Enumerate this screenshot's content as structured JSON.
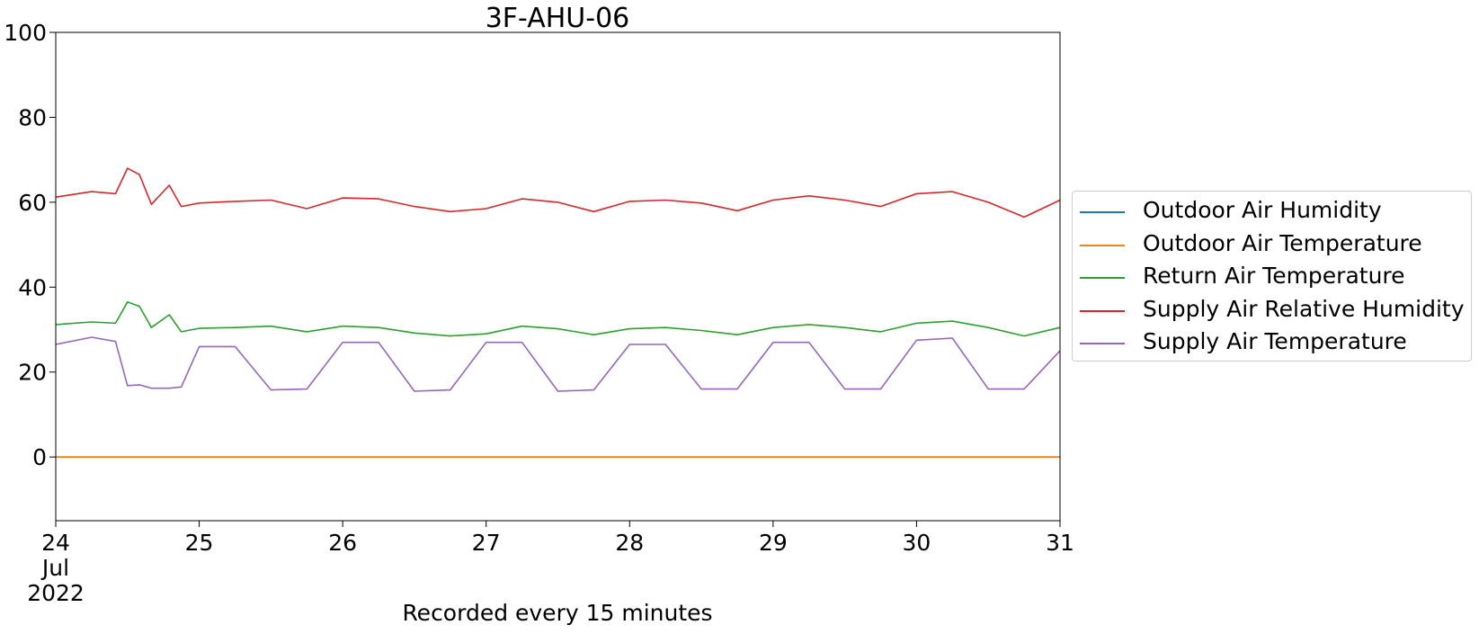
{
  "chart_data": {
    "type": "line",
    "title": "3F-AHU-06",
    "xlabel": "Recorded every 15 minutes",
    "ylabel": "",
    "ylim": [
      -15,
      100
    ],
    "xlim": [
      "2022-07-24",
      "2022-07-31"
    ],
    "yticks": [
      "100",
      "80",
      "60",
      "40",
      "20",
      "0"
    ],
    "xticks": [
      {
        "lines": [
          "24",
          "Jul",
          "2022"
        ]
      },
      {
        "lines": [
          "25"
        ]
      },
      {
        "lines": [
          "26"
        ]
      },
      {
        "lines": [
          "27"
        ]
      },
      {
        "lines": [
          "28"
        ]
      },
      {
        "lines": [
          "29"
        ]
      },
      {
        "lines": [
          "30"
        ]
      },
      {
        "lines": [
          "31"
        ]
      }
    ],
    "grid": false,
    "legend_position": "center-right, outside plot",
    "x": [
      "2022-07-24 00:00",
      "2022-07-24 06:00",
      "2022-07-24 10:00",
      "2022-07-24 12:00",
      "2022-07-24 14:00",
      "2022-07-24 16:00",
      "2022-07-24 19:00",
      "2022-07-24 21:00",
      "2022-07-25 00:00",
      "2022-07-25 06:00",
      "2022-07-25 12:00",
      "2022-07-25 18:00",
      "2022-07-26 00:00",
      "2022-07-26 06:00",
      "2022-07-26 12:00",
      "2022-07-26 18:00",
      "2022-07-27 00:00",
      "2022-07-27 06:00",
      "2022-07-27 12:00",
      "2022-07-27 18:00",
      "2022-07-28 00:00",
      "2022-07-28 06:00",
      "2022-07-28 12:00",
      "2022-07-28 18:00",
      "2022-07-29 00:00",
      "2022-07-29 06:00",
      "2022-07-29 12:00",
      "2022-07-29 18:00",
      "2022-07-30 00:00",
      "2022-07-30 06:00",
      "2022-07-30 12:00",
      "2022-07-30 18:00",
      "2022-07-31 00:00"
    ],
    "series": [
      {
        "name": "Outdoor Air Humidity",
        "color": "#1f77b4",
        "values": [
          0,
          0,
          0,
          0,
          0,
          0,
          0,
          0,
          0,
          0,
          0,
          0,
          0,
          0,
          0,
          0,
          0,
          0,
          0,
          0,
          0,
          0,
          0,
          0,
          0,
          0,
          0,
          0,
          0,
          0,
          0,
          0,
          0
        ]
      },
      {
        "name": "Outdoor Air Temperature",
        "color": "#ff7f0e",
        "values": [
          0,
          0,
          0,
          0,
          0,
          0,
          0,
          0,
          0,
          0,
          0,
          0,
          0,
          0,
          0,
          0,
          0,
          0,
          0,
          0,
          0,
          0,
          0,
          0,
          0,
          0,
          0,
          0,
          0,
          0,
          0,
          0,
          0
        ]
      },
      {
        "name": "Return Air Temperature",
        "color": "#2ca02c",
        "values": [
          31.2,
          31.8,
          31.5,
          36.5,
          35.5,
          30.5,
          33.5,
          29.5,
          30.3,
          30.5,
          30.8,
          29.5,
          30.8,
          30.5,
          29.2,
          28.5,
          29.0,
          30.8,
          30.2,
          28.8,
          30.2,
          30.5,
          29.8,
          28.8,
          30.5,
          31.2,
          30.5,
          29.5,
          31.5,
          32.0,
          30.5,
          28.5,
          30.5
        ]
      },
      {
        "name": "Supply Air Relative Humidity",
        "color": "#d62728",
        "values": [
          61.2,
          62.5,
          62.0,
          68.0,
          66.5,
          59.5,
          64.0,
          59.0,
          59.8,
          60.2,
          60.5,
          58.5,
          61.0,
          60.8,
          59.0,
          57.8,
          58.5,
          60.8,
          60.0,
          57.8,
          60.2,
          60.5,
          59.8,
          58.0,
          60.5,
          61.5,
          60.5,
          59.0,
          62.0,
          62.5,
          60.0,
          56.5,
          60.5
        ]
      },
      {
        "name": "Supply Air Temperature",
        "color": "#9467bd",
        "values": [
          26.5,
          28.2,
          27.2,
          16.8,
          17.0,
          16.2,
          16.2,
          16.5,
          26.0,
          26.0,
          15.8,
          16.0,
          27.0,
          27.0,
          15.5,
          15.8,
          27.0,
          27.0,
          15.5,
          15.8,
          26.5,
          26.5,
          16.0,
          16.0,
          27.0,
          27.0,
          16.0,
          16.0,
          27.5,
          28.0,
          16.0,
          16.0,
          25.0
        ]
      }
    ]
  }
}
